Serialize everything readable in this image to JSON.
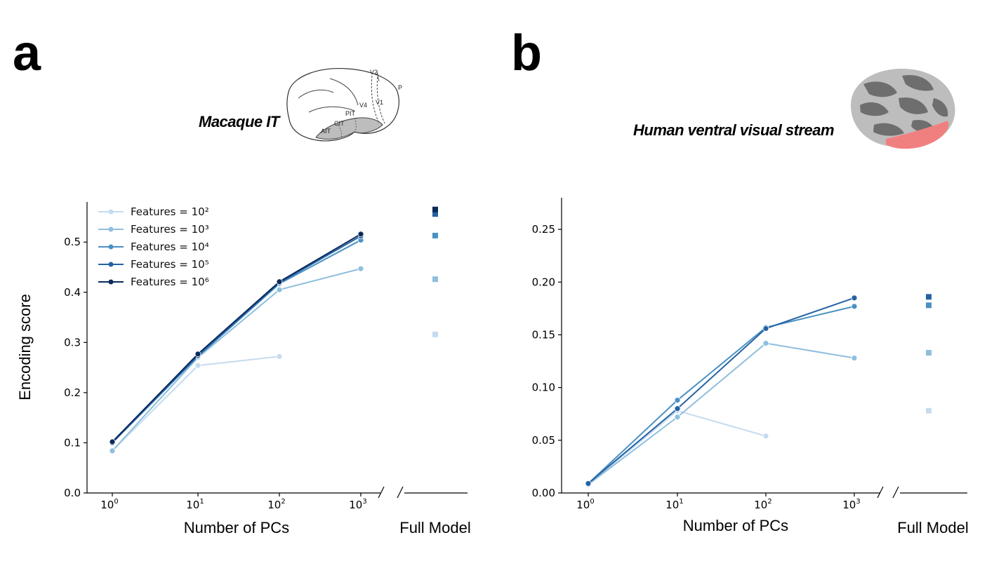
{
  "panels": [
    {
      "letter": "a",
      "subtitle": "Macaque IT",
      "brain_labels": [
        "V2",
        "P",
        "V4",
        "V1",
        "PIT",
        "CIT",
        "AIT"
      ]
    },
    {
      "letter": "b",
      "subtitle": "Human ventral visual stream"
    }
  ],
  "colors": {
    "features_1e2": "#c6dbef",
    "features_1e3": "#8fbfdc",
    "features_1e4": "#4a91c2",
    "features_1e5": "#2462a3",
    "features_1e6": "#0b2a5c",
    "brain_highlight": "#f08080"
  },
  "chart_data": [
    {
      "type": "line",
      "panel": "a",
      "xlabel": "Number of PCs",
      "full_model_label": "Full Model",
      "ylabel": "Encoding score",
      "xscale": "log",
      "x": [
        1,
        10,
        100,
        1000
      ],
      "x_tick_labels": [
        {
          "base": "10",
          "exp": "0"
        },
        {
          "base": "10",
          "exp": "1"
        },
        {
          "base": "10",
          "exp": "2"
        },
        {
          "base": "10",
          "exp": "3"
        }
      ],
      "ylim": [
        0,
        0.58
      ],
      "yticks": [
        0.0,
        0.1,
        0.2,
        0.3,
        0.4,
        0.5
      ],
      "ytick_labels": [
        "0.0",
        "0.1",
        "0.2",
        "0.3",
        "0.4",
        "0.5"
      ],
      "legend_position": "top-left",
      "series": [
        {
          "name": "Features = 10²",
          "color_key": "features_1e2",
          "values": [
            0.084,
            0.254,
            0.272,
            null
          ],
          "full_model": 0.316
        },
        {
          "name": "Features = 10³",
          "color_key": "features_1e3",
          "values": [
            0.084,
            0.27,
            0.405,
            0.447
          ],
          "full_model": 0.426
        },
        {
          "name": "Features = 10⁴",
          "color_key": "features_1e4",
          "values": [
            0.1,
            0.272,
            0.417,
            0.504
          ],
          "full_model": 0.513
        },
        {
          "name": "Features = 10⁵",
          "color_key": "features_1e5",
          "values": [
            0.1,
            0.274,
            0.419,
            0.512
          ],
          "full_model": 0.556
        },
        {
          "name": "Features = 10⁶",
          "color_key": "features_1e6",
          "values": [
            0.102,
            0.277,
            0.421,
            0.516
          ],
          "full_model": 0.565
        }
      ]
    },
    {
      "type": "line",
      "panel": "b",
      "xlabel": "Number of PCs",
      "full_model_label": "Full Model",
      "ylabel": "",
      "xscale": "log",
      "x": [
        1,
        10,
        100,
        1000
      ],
      "x_tick_labels": [
        {
          "base": "10",
          "exp": "0"
        },
        {
          "base": "10",
          "exp": "1"
        },
        {
          "base": "10",
          "exp": "2"
        },
        {
          "base": "10",
          "exp": "3"
        }
      ],
      "ylim": [
        0,
        0.28
      ],
      "yticks": [
        0.0,
        0.05,
        0.1,
        0.15,
        0.2,
        0.25
      ],
      "ytick_labels": [
        "0.00",
        "0.05",
        "0.10",
        "0.15",
        "0.20",
        "0.25"
      ],
      "series": [
        {
          "name": "Features = 10²",
          "color_key": "features_1e2",
          "values": [
            0.008,
            0.078,
            0.054,
            null
          ],
          "full_model": 0.078
        },
        {
          "name": "Features = 10³",
          "color_key": "features_1e3",
          "values": [
            0.008,
            0.072,
            0.142,
            0.128
          ],
          "full_model": 0.133
        },
        {
          "name": "Features = 10⁴",
          "color_key": "features_1e4",
          "values": [
            0.009,
            0.088,
            0.157,
            0.177
          ],
          "full_model": 0.178
        },
        {
          "name": "Features = 10⁵",
          "color_key": "features_1e5",
          "values": [
            0.009,
            0.08,
            0.156,
            0.185
          ],
          "full_model": 0.186
        }
      ]
    }
  ]
}
